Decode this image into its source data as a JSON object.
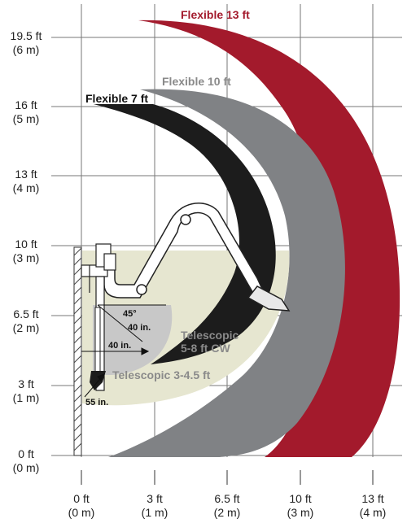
{
  "y_ticks": [
    {
      "ft": "19.5 ft",
      "m": "(6 m)"
    },
    {
      "ft": "16 ft",
      "m": "(5 m)"
    },
    {
      "ft": "13 ft",
      "m": "(4 m)"
    },
    {
      "ft": "10 ft",
      "m": "(3 m)"
    },
    {
      "ft": "6.5 ft",
      "m": "(2 m)"
    },
    {
      "ft": "3 ft",
      "m": "(1 m)"
    },
    {
      "ft": "0 ft",
      "m": "(0 m)"
    }
  ],
  "x_ticks": [
    {
      "ft": "0 ft",
      "m": "(0 m)"
    },
    {
      "ft": "3 ft",
      "m": "(1 m)"
    },
    {
      "ft": "6.5 ft",
      "m": "(2 m)"
    },
    {
      "ft": "10 ft",
      "m": "(3 m)"
    },
    {
      "ft": "13 ft",
      "m": "(4 m)"
    }
  ],
  "ranges": {
    "flex13": "Flexible 13 ft",
    "flex10": "Flexible 10 ft",
    "flex7": "Flexible 7 ft",
    "tele58_line1": "Telescopic",
    "tele58_line2": "5-8 ft CW",
    "tele345": "Telescopic 3-4.5 ft"
  },
  "dims": {
    "angle": "45°",
    "d40a": "40 in.",
    "d40b": "40 in.",
    "d55": "55 in."
  },
  "colors": {
    "flex13": "#a31a2c",
    "flex10": "#808285",
    "flex7": "#1c1c1c",
    "tele58": "#e6e6d0",
    "tele345": "#c8c8c8",
    "label_gray": "#8a8a8a",
    "grid": "#777777"
  }
}
